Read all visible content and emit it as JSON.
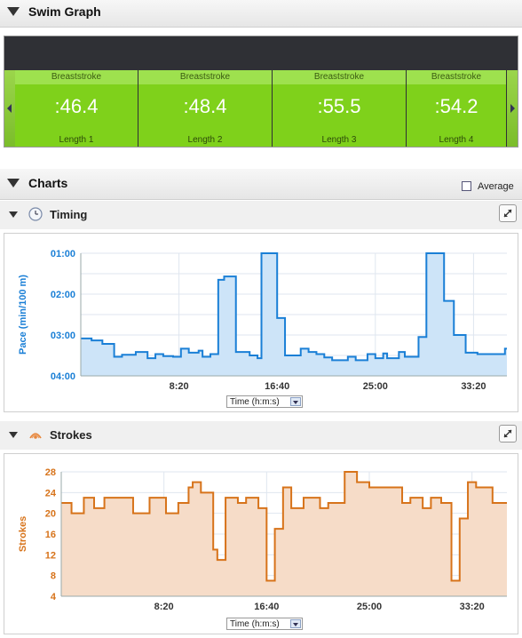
{
  "swim_graph": {
    "title": "Swim Graph",
    "lengths": [
      {
        "stroke": "Breaststroke",
        "pace": ":46.4",
        "label": "Length 1"
      },
      {
        "stroke": "Breaststroke",
        "pace": ":48.4",
        "label": "Length 2"
      },
      {
        "stroke": "Breaststroke",
        "pace": ":55.5",
        "label": "Length 3"
      },
      {
        "stroke": "Breaststroke",
        "pace": ":54.2",
        "label": "Length 4"
      }
    ]
  },
  "charts": {
    "title": "Charts",
    "average_label": "Average",
    "timing": {
      "title": "Timing",
      "axis_select": "Time (h:m:s)"
    },
    "strokes": {
      "title": "Strokes",
      "axis_select": "Time (h:m:s)"
    }
  },
  "chart_data": [
    {
      "type": "area",
      "ylabel": "Pace (min/100 m)",
      "y_ticks": [
        "01:00",
        "02:00",
        "03:00",
        "04:00"
      ],
      "x_ticks": [
        "8:20",
        "16:40",
        "25:00",
        "33:20"
      ],
      "x_tick_seconds": [
        500,
        1000,
        1500,
        2000
      ],
      "xlim_seconds": [
        0,
        2170
      ],
      "ylim_seconds": [
        60,
        240
      ],
      "color": "#1a7fd6",
      "x_seconds": [
        0,
        55,
        110,
        170,
        210,
        280,
        340,
        380,
        420,
        470,
        510,
        550,
        600,
        620,
        660,
        700,
        730,
        750,
        790,
        850,
        860,
        900,
        920,
        950,
        960,
        970,
        1000,
        1020,
        1040,
        1080,
        1120,
        1160,
        1200,
        1240,
        1280,
        1310,
        1360,
        1400,
        1460,
        1500,
        1540,
        1560,
        1620,
        1650,
        1720,
        1760,
        1800,
        1850,
        1900,
        1960,
        2000,
        2020,
        2040,
        2070,
        2120,
        2160
      ],
      "pace_seconds": [
        185,
        188,
        193,
        212,
        209,
        205,
        214,
        208,
        211,
        212,
        200,
        206,
        203,
        212,
        208,
        99,
        94,
        94,
        205,
        205,
        210,
        214,
        60,
        60,
        60,
        60,
        155,
        155,
        210,
        210,
        200,
        205,
        208,
        213,
        217,
        217,
        212,
        217,
        208,
        214,
        207,
        214,
        205,
        212,
        183,
        60,
        60,
        130,
        180,
        206,
        206,
        208,
        208,
        208,
        208,
        200
      ]
    },
    {
      "type": "area",
      "ylabel": "Strokes",
      "y_ticks": [
        4,
        8,
        12,
        16,
        20,
        24,
        28
      ],
      "x_ticks": [
        "8:20",
        "16:40",
        "25:00",
        "33:20"
      ],
      "x_tick_seconds": [
        500,
        1000,
        1500,
        2000
      ],
      "xlim_seconds": [
        0,
        2170
      ],
      "ylim": [
        4,
        28
      ],
      "color": "#d7731a",
      "x_seconds": [
        0,
        50,
        110,
        160,
        210,
        280,
        350,
        430,
        510,
        570,
        620,
        640,
        680,
        740,
        760,
        800,
        860,
        900,
        960,
        1000,
        1040,
        1080,
        1120,
        1180,
        1260,
        1300,
        1340,
        1380,
        1440,
        1500,
        1520,
        1560,
        1620,
        1660,
        1700,
        1760,
        1800,
        1850,
        1900,
        1940,
        1980,
        2020,
        2040,
        2100,
        2140,
        2170
      ],
      "values": [
        22,
        20,
        23,
        21,
        23,
        23,
        20,
        23,
        20,
        22,
        25,
        26,
        24,
        13,
        11,
        23,
        22,
        23,
        21,
        7,
        17,
        25,
        21,
        23,
        21,
        22,
        22,
        28,
        26,
        25,
        25,
        25,
        25,
        22,
        23,
        21,
        23,
        22,
        7,
        19,
        26,
        25,
        25,
        22,
        22,
        22
      ]
    }
  ]
}
